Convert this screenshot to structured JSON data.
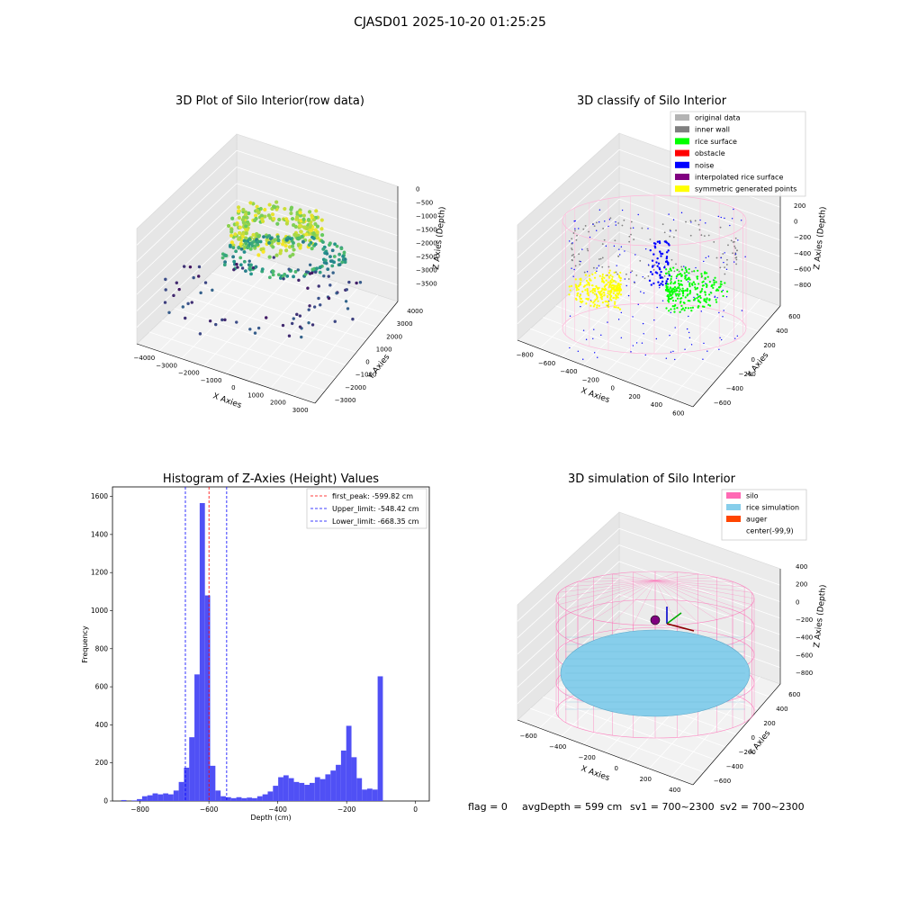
{
  "figure": {
    "suptitle": "CJASD01 2025-10-20 01:25:25",
    "footer": {
      "flag": "flag = 0",
      "avg_depth": "avgDepth = 599 cm",
      "sv1": "sv1 = 700~2300",
      "sv2": "sv2 = 700~2300"
    }
  },
  "colors": {
    "hist_bar": "#5050f5",
    "first_peak": "#ff0000",
    "limit": "#0000ff",
    "silo": "#ff69b4",
    "rice": "#87ceeb",
    "auger": "#ff4500",
    "orig": "#b3b3b3",
    "inner_wall": "#808080",
    "rice_surface": "#00ff00",
    "obstacle": "#ff0000",
    "noise": "#0000ff",
    "interp": "#800080",
    "sym": "#ffff00"
  },
  "chart_data": [
    {
      "type": "scatter",
      "title": "3D Plot of Silo Interior(row data)",
      "xlabel": "X Axies",
      "ylabel": "Y Axies",
      "zlabel": "Z Axies (Depth)",
      "x_ticks": [
        "−4000",
        "−3000",
        "−2000",
        "−1000",
        "0",
        "1000",
        "2000",
        "3000"
      ],
      "y_ticks": [
        "−3000",
        "−2000",
        "−1000",
        "0",
        "1000",
        "2000",
        "3000",
        "4000"
      ],
      "z_ticks": [
        "0",
        "−500",
        "−1000",
        "−1500",
        "−2000",
        "−2500",
        "−3000",
        "−3500"
      ],
      "xlim": [
        -4300,
        3500
      ],
      "ylim": [
        -3500,
        4300
      ],
      "zlim": [
        -3800,
        200
      ],
      "colormap": "viridis (by depth)"
    },
    {
      "type": "scatter",
      "title": "3D classify of Silo Interior",
      "xlabel": "X Axies",
      "ylabel": "Y Axies",
      "zlabel": "Z Axies (Depth)",
      "x_ticks": [
        "−800",
        "−600",
        "−400",
        "−200",
        "0",
        "200",
        "400",
        "600"
      ],
      "y_ticks": [
        "−600",
        "−400",
        "−200",
        "0",
        "200",
        "400",
        "600"
      ],
      "z_ticks": [
        "200",
        "0",
        "−200",
        "−400",
        "−600",
        "−800"
      ],
      "z_top_partial": "0",
      "xlim": [
        -850,
        650
      ],
      "ylim": [
        -650,
        650
      ],
      "zlim": [
        -900,
        300
      ],
      "legend": [
        {
          "label": "original data",
          "color": "#b3b3b3"
        },
        {
          "label": "inner wall",
          "color": "#808080"
        },
        {
          "label": "rice surface",
          "color": "#00ff00"
        },
        {
          "label": "obstacle",
          "color": "#ff0000"
        },
        {
          "label": "noise",
          "color": "#0000ff"
        },
        {
          "label": "interpolated rice surface",
          "color": "#800080"
        },
        {
          "label": "symmetric generated points",
          "color": "#ffff00"
        }
      ]
    },
    {
      "type": "bar",
      "title": "Histogram of Z-Axies (Height) Values",
      "xlabel": "Depth (cm)",
      "ylabel": "Frequency",
      "xlim": [
        -880,
        40
      ],
      "ylim": [
        0,
        1650
      ],
      "x_ticks": [
        -800,
        -600,
        -400,
        -200,
        0
      ],
      "x_tick_labels": [
        "−800",
        "−600",
        "−400",
        "−200",
        "0"
      ],
      "y_ticks": [
        0,
        200,
        400,
        600,
        800,
        1000,
        1200,
        1400,
        1600
      ],
      "bin_start": -870,
      "bin_width": 15.2,
      "values": [
        0,
        5,
        0,
        3,
        10,
        25,
        30,
        40,
        35,
        40,
        35,
        55,
        100,
        175,
        335,
        665,
        1565,
        1080,
        185,
        55,
        25,
        20,
        15,
        20,
        15,
        18,
        15,
        25,
        35,
        50,
        80,
        125,
        135,
        120,
        100,
        95,
        85,
        95,
        125,
        115,
        140,
        160,
        190,
        265,
        395,
        230,
        120,
        60,
        65,
        60,
        655
      ],
      "vlines": [
        {
          "x": -599.82,
          "label": "first_peak: -599.82 cm",
          "style": "red"
        },
        {
          "x": -548.42,
          "label": "Upper_limit: -548.42 cm",
          "style": "blue"
        },
        {
          "x": -668.35,
          "label": "Lower_limit: -668.35 cm",
          "style": "blue"
        }
      ]
    },
    {
      "type": "scatter",
      "title": "3D simulation of Silo Interior",
      "xlabel": "X Axies",
      "ylabel": "Y Axies",
      "zlabel": "Z Axies (Depth)",
      "x_ticks": [
        "−600",
        "−400",
        "−200",
        "0",
        "200",
        "400"
      ],
      "y_ticks": [
        "−600",
        "−400",
        "−200",
        "0",
        "200",
        "400",
        "600"
      ],
      "z_ticks": [
        "400",
        "200",
        "0",
        "−200",
        "−400",
        "−600",
        "−800"
      ],
      "xlim": [
        -750,
        550
      ],
      "ylim": [
        -650,
        650
      ],
      "zlim": [
        -900,
        450
      ],
      "legend": [
        {
          "label": "silo",
          "color": "#ff69b4"
        },
        {
          "label": "rice simulation",
          "color": "#87ceeb"
        },
        {
          "label": "auger",
          "color": "#ff4500"
        },
        {
          "label": "center(-99,9)",
          "color": "none"
        }
      ]
    }
  ]
}
